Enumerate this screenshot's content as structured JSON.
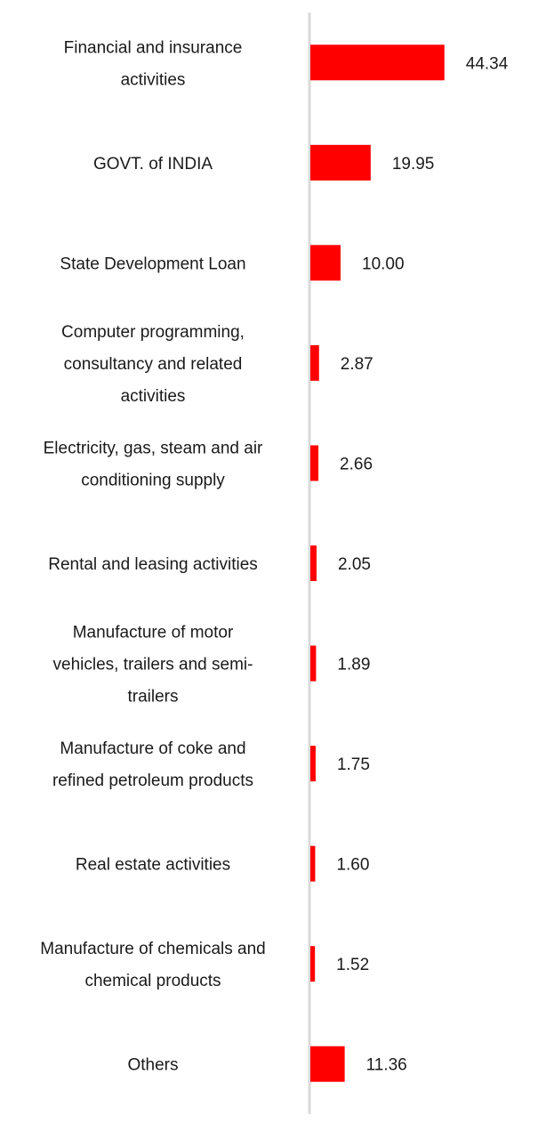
{
  "chart_data": {
    "type": "bar",
    "orientation": "horizontal",
    "categories": [
      "Financial and insurance activities",
      "GOVT. of INDIA",
      "State Development Loan",
      "Computer programming, consultancy and related activities",
      "Electricity, gas, steam and air conditioning supply",
      "Rental and leasing activities",
      "Manufacture of motor vehicles, trailers and semi-trailers",
      "Manufacture of coke and refined petroleum products",
      "Real estate activities",
      "Manufacture of chemicals and chemical products",
      "Others"
    ],
    "category_lines": [
      [
        "Financial and insurance",
        "activities"
      ],
      [
        "GOVT. of INDIA"
      ],
      [
        "State Development Loan"
      ],
      [
        "Computer programming,",
        "consultancy and related",
        "activities"
      ],
      [
        "Electricity, gas, steam and air",
        "conditioning supply"
      ],
      [
        "Rental and leasing activities"
      ],
      [
        "Manufacture of motor",
        "vehicles, trailers and semi-",
        "trailers"
      ],
      [
        "Manufacture of coke and",
        "refined petroleum products"
      ],
      [
        "Real estate activities"
      ],
      [
        "Manufacture of chemicals and",
        "chemical products"
      ],
      [
        "Others"
      ]
    ],
    "values": [
      44.34,
      19.95,
      10.0,
      2.87,
      2.66,
      2.05,
      1.89,
      1.75,
      1.6,
      1.52,
      11.36
    ],
    "value_labels": [
      "44.34",
      "19.95",
      "10.00",
      "2.87",
      "2.66",
      "2.05",
      "1.89",
      "1.75",
      "1.60",
      "1.52",
      "11.36"
    ],
    "xlim": [
      0,
      50
    ],
    "grid": false,
    "legend": "none",
    "colors": {
      "bar": "#ff0000",
      "axis": "#d9d9d9",
      "text": "#1a1a1a"
    }
  }
}
